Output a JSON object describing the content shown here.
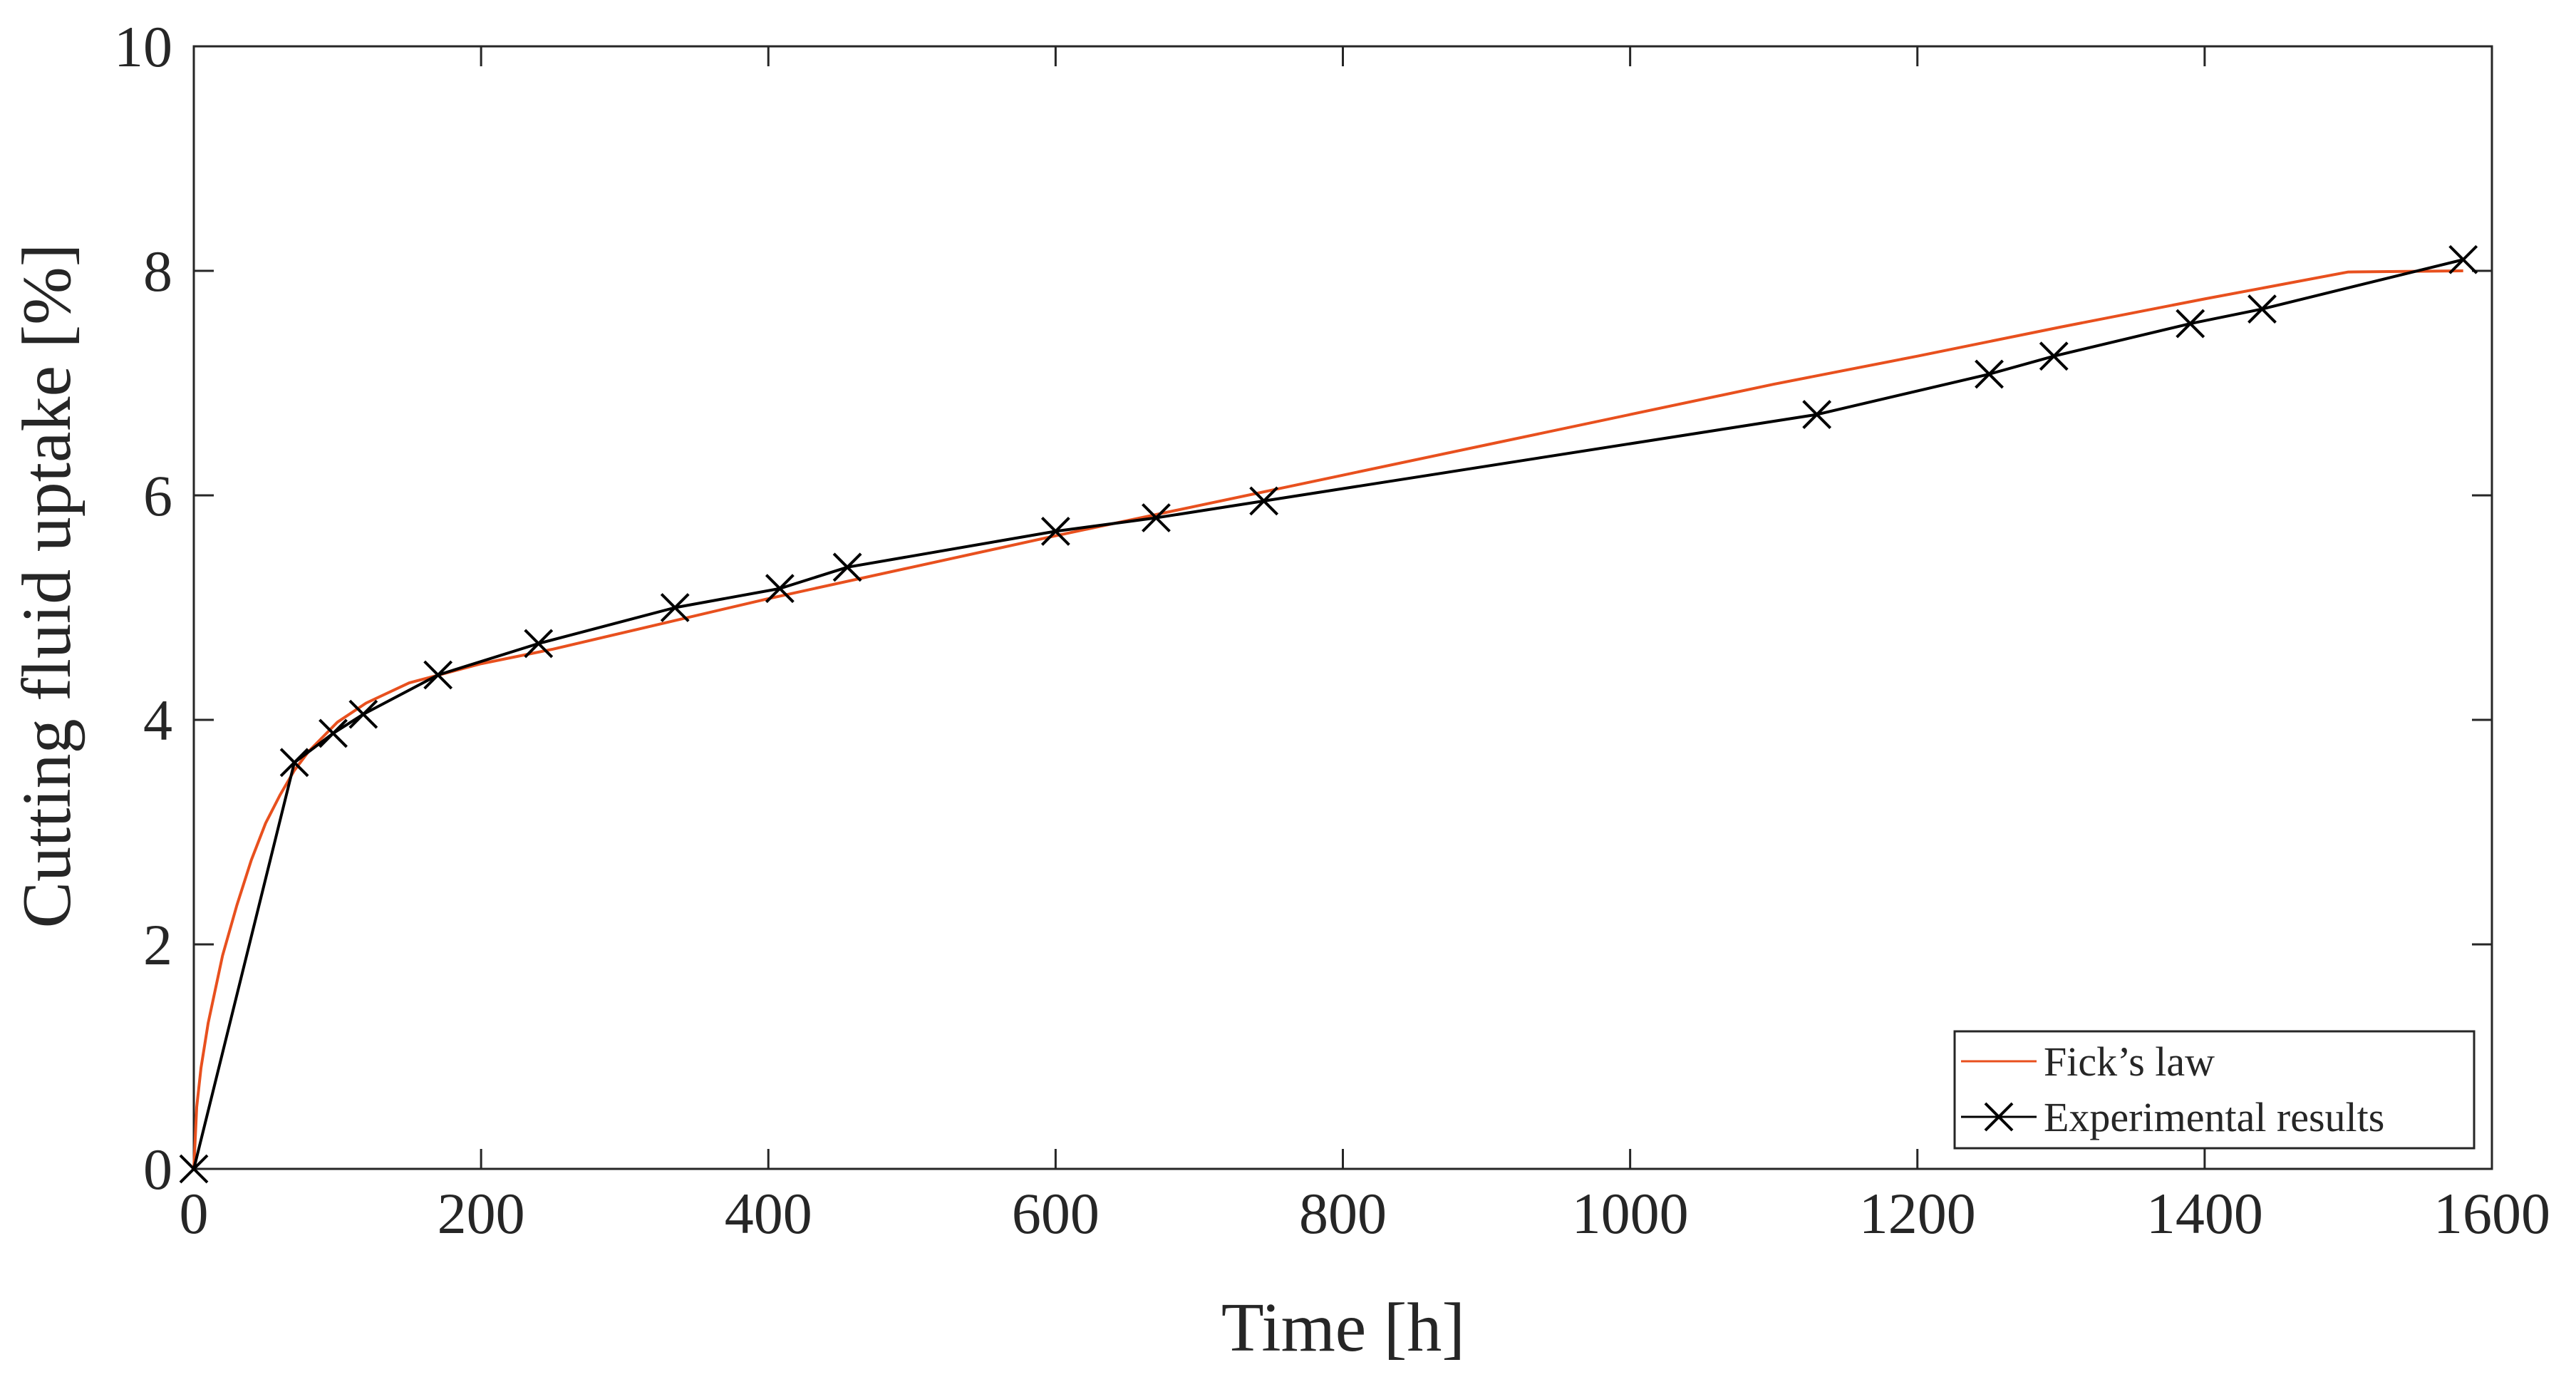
{
  "chart_data": {
    "type": "line",
    "title": "",
    "xlabel": "Time [h]",
    "ylabel": "Cutting fluid uptake [%]",
    "xlim": [
      0,
      1600
    ],
    "ylim": [
      0,
      10
    ],
    "xticks": [
      0,
      200,
      400,
      600,
      800,
      1000,
      1200,
      1400,
      1600
    ],
    "yticks": [
      0,
      2,
      4,
      6,
      8,
      10
    ],
    "xtick_labels": [
      "0",
      "200",
      "400",
      "600",
      "800",
      "1000",
      "1200",
      "1400",
      "1600"
    ],
    "ytick_labels": [
      "0",
      "2",
      "4",
      "6",
      "8",
      "10"
    ],
    "grid": false,
    "legend_position": "bottom-right",
    "colors": {
      "fick": "#e8501e",
      "experimental": "#000000",
      "axis": "#262626"
    },
    "series": [
      {
        "name": "Fick’s law",
        "style": "line",
        "x": [
          0,
          2,
          5,
          10,
          20,
          30,
          40,
          50,
          60,
          70,
          80,
          100,
          120,
          150,
          200,
          250,
          300,
          400,
          500,
          600,
          700,
          800,
          900,
          1000,
          1100,
          1200,
          1300,
          1400,
          1500,
          1580
        ],
        "values": [
          0,
          0.55,
          0.9,
          1.3,
          1.9,
          2.35,
          2.75,
          3.08,
          3.33,
          3.55,
          3.72,
          3.98,
          4.15,
          4.33,
          4.5,
          4.63,
          4.78,
          5.08,
          5.36,
          5.64,
          5.91,
          6.18,
          6.45,
          6.72,
          6.99,
          7.24,
          7.5,
          7.75,
          7.99,
          8.0
        ]
      },
      {
        "name": "Experimental results",
        "style": "line-x-marker",
        "x": [
          0,
          70,
          97,
          118,
          170,
          240,
          335,
          408,
          455,
          600,
          670,
          745,
          1130,
          1250,
          1295,
          1390,
          1440,
          1580
        ],
        "values": [
          0,
          3.62,
          3.88,
          4.05,
          4.4,
          4.68,
          5.0,
          5.17,
          5.36,
          5.68,
          5.8,
          5.95,
          6.72,
          7.08,
          7.24,
          7.53,
          7.66,
          8.1
        ]
      }
    ]
  }
}
